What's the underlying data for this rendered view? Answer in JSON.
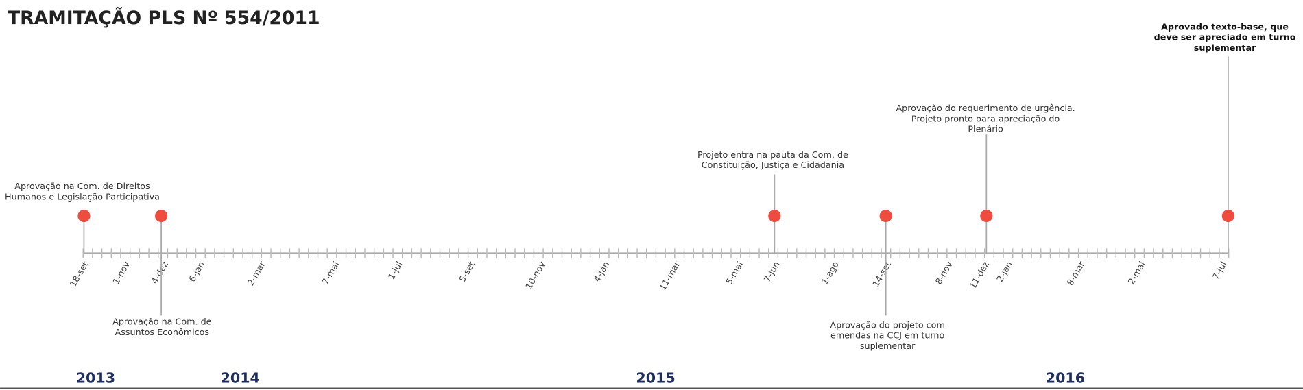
{
  "header": {
    "title": "TRAMITAÇÃO PLS Nº 554/2011"
  },
  "axis_labels": [
    "18-set",
    "1-nov",
    "4-dez",
    "6-jan",
    "2-mar",
    "7-mai",
    "1-jul",
    "5-set",
    "10-nov",
    "4-jan",
    "11-mar",
    "5-mai",
    "7-jun",
    "1-ago",
    "14-set",
    "8-nov",
    "11-dez",
    "2-jan",
    "8-mar",
    "2-mai",
    "7-jul"
  ],
  "events": [
    {
      "lines": [
        "Aprovação na Com. de Direitos",
        "Humanos e Legislação Participativa"
      ]
    },
    {
      "lines": [
        "Aprovação na Com. de",
        "Assuntos Econômicos"
      ]
    },
    {
      "lines": [
        "Projeto entra na pauta da Com. de",
        "Constituição, Justiça e Cidadania"
      ]
    },
    {
      "lines": [
        "Aprovação do projeto com",
        "emendas na CCJ em turno",
        "suplementar"
      ]
    },
    {
      "lines": [
        "Aprovação do requerimento de urgência.",
        "Projeto pronto para apreciação do",
        "Plenário"
      ]
    },
    {
      "lines": [
        "Aprovado texto-base, que",
        "deve ser apreciado em turno",
        "suplementar"
      ]
    }
  ],
  "years": [
    "2013",
    "2014",
    "2015",
    "2016"
  ]
}
